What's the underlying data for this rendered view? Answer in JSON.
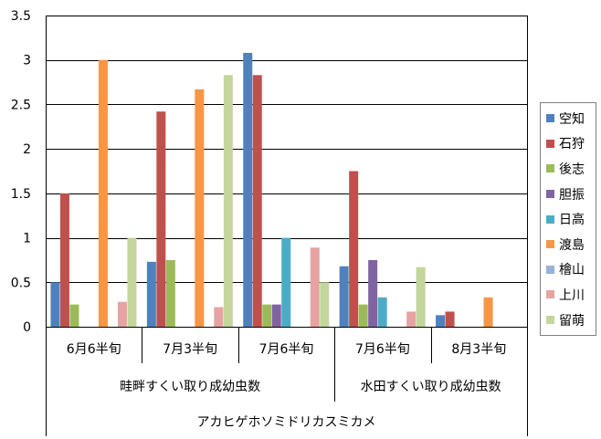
{
  "chart_data": {
    "type": "bar",
    "ylim": [
      0,
      3.5
    ],
    "yticks": [
      "0",
      "0.5",
      "1",
      "1.5",
      "2",
      "2.5",
      "3",
      "3.5"
    ],
    "grid": true,
    "legend_position": "right",
    "categories": [
      "6月6半旬",
      "7月3半旬",
      "7月6半旬",
      "7月6半旬",
      "8月3半旬"
    ],
    "groups": [
      {
        "label": "畦畔すくい取り成幼虫数",
        "categories": [
          0,
          1,
          2
        ]
      },
      {
        "label": "水田すくい取り成幼虫数",
        "categories": [
          3,
          4
        ]
      }
    ],
    "top_label": "アカヒゲホソミドリカスミカメ",
    "series": [
      {
        "name": "空知",
        "color": "#4f81bd",
        "values": [
          0.5,
          0.73,
          3.08,
          0.68,
          0.13
        ]
      },
      {
        "name": "石狩",
        "color": "#c0504d",
        "values": [
          1.5,
          2.42,
          2.83,
          1.75,
          0.17
        ]
      },
      {
        "name": "後志",
        "color": "#9bbb59",
        "values": [
          0.25,
          0.75,
          0.25,
          0.25,
          null
        ]
      },
      {
        "name": "胆振",
        "color": "#8064a2",
        "values": [
          null,
          null,
          0.25,
          0.75,
          null
        ]
      },
      {
        "name": "日高",
        "color": "#4bacc6",
        "values": [
          null,
          null,
          1.0,
          0.33,
          null
        ]
      },
      {
        "name": "渡島",
        "color": "#f79646",
        "values": [
          3.0,
          2.67,
          null,
          null,
          0.33
        ]
      },
      {
        "name": "檜山",
        "color": "#95b3d7",
        "values": [
          null,
          null,
          null,
          null,
          null
        ]
      },
      {
        "name": "上川",
        "color": "#e6a3a2",
        "values": [
          0.28,
          0.22,
          0.89,
          0.17,
          null
        ]
      },
      {
        "name": "留萌",
        "color": "#c3d69b",
        "values": [
          1.0,
          2.83,
          0.5,
          0.67,
          null
        ]
      }
    ]
  }
}
